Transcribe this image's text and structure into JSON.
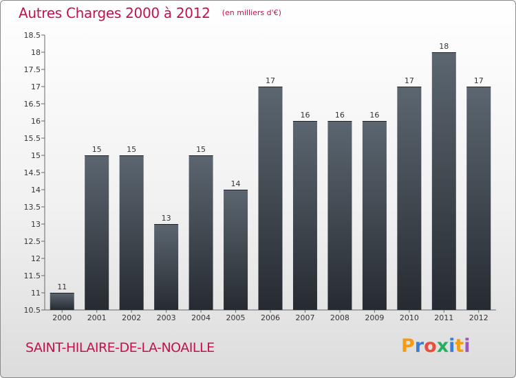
{
  "chart_data": {
    "type": "bar",
    "title": "Autres Charges 2000 à 2012",
    "unit": "(en milliers d'€)",
    "categories": [
      "2000",
      "2001",
      "2002",
      "2003",
      "2004",
      "2005",
      "2006",
      "2007",
      "2008",
      "2009",
      "2010",
      "2011",
      "2012"
    ],
    "values": [
      11,
      15,
      15,
      13,
      15,
      14,
      17,
      16,
      16,
      16,
      17,
      18,
      17
    ],
    "data_labels": [
      "11",
      "15",
      "15",
      "13",
      "15",
      "14",
      "17",
      "16",
      "16",
      "16",
      "17",
      "18",
      "17"
    ],
    "ylim": [
      10.5,
      18.5
    ],
    "yticks": [
      "10.5",
      "11",
      "11.5",
      "12",
      "12.5",
      "13",
      "13.5",
      "14",
      "14.5",
      "15",
      "15.5",
      "16",
      "16.5",
      "17",
      "17.5",
      "18",
      "18.5"
    ],
    "grid": false,
    "legend": "none",
    "bar_color": "#3a4047"
  },
  "footer": {
    "commune": "SAINT-HILAIRE-DE-LA-NOAILLE",
    "logo_letters": [
      "P",
      "r",
      "o",
      "x",
      "i",
      "t",
      "i"
    ],
    "logo_colors": [
      "#f39c12",
      "#3a7fd5",
      "#e74c3c",
      "#27ae60",
      "#3a7fd5",
      "#f39c12",
      "#9b59b6"
    ]
  },
  "colors": {
    "accent": "#c4114e"
  }
}
